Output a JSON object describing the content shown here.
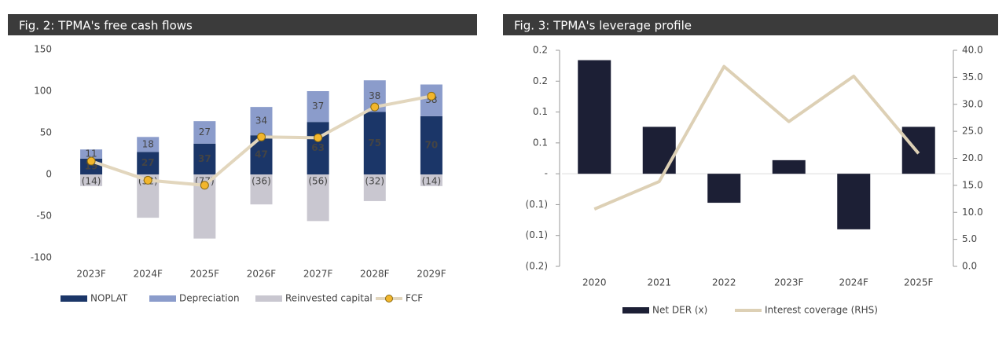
{
  "chart_data": [
    {
      "type": "bar",
      "title": "Fig. 2: TPMA's free cash flows",
      "stacked": true,
      "data_labels": true,
      "categories": [
        "2023F",
        "2024F",
        "2025F",
        "2026F",
        "2027F",
        "2028F",
        "2029F"
      ],
      "series": [
        {
          "name": "NOPLAT",
          "color": "#1b3668",
          "values": [
            19,
            27,
            37,
            47,
            63,
            75,
            70
          ]
        },
        {
          "name": "Depreciation",
          "color": "#8b9ccb",
          "values": [
            11,
            18,
            27,
            34,
            37,
            38,
            38
          ]
        },
        {
          "name": "Reinvested capital",
          "color": "#c9c7d0",
          "values": [
            -14,
            -52,
            -77,
            -36,
            -56,
            -32,
            -14
          ],
          "value_labels": [
            "(14)",
            "(52)",
            "(77)",
            "(36)",
            "(56)",
            "(32)",
            "(14)"
          ]
        },
        {
          "name": "FCF",
          "type": "line",
          "color": "#e2d6bd",
          "marker_color": "#f2b62c",
          "marker": true,
          "values": [
            16,
            -7,
            -13,
            45,
            44,
            81,
            94
          ]
        }
      ],
      "ylim": [
        -100,
        150
      ],
      "yticks": [
        -100,
        -50,
        0,
        50,
        100,
        150
      ]
    },
    {
      "type": "bar",
      "title": "Fig. 3: TPMA's leverage profile",
      "stacked": false,
      "data_labels": false,
      "categories": [
        "2020",
        "2021",
        "2022",
        "2023F",
        "2024F",
        "2025F"
      ],
      "series": [
        {
          "name": "Net DER (x)",
          "color": "#1c1f35",
          "values": [
            0.184,
            0.076,
            -0.047,
            0.022,
            -0.09,
            0.076
          ]
        },
        {
          "name": "Interest coverage (RHS)",
          "type": "line",
          "axis": "y2",
          "color": "#ddd0b5",
          "marker": false,
          "values": [
            10.6,
            15.7,
            37.0,
            26.8,
            35.2,
            20.9
          ]
        }
      ],
      "ylim": [
        -0.15,
        0.2
      ],
      "yticks": [
        {
          "value": -0.15,
          "label": "(0.2)"
        },
        {
          "value": -0.1,
          "label": "(0.1)"
        },
        {
          "value": -0.05,
          "label": "(0.1)"
        },
        {
          "value": 0,
          "label": "-"
        },
        {
          "value": 0.05,
          "label": "0.1"
        },
        0.1,
        {
          "value": 0.15,
          "label": "0.2"
        },
        0.2
      ],
      "y2lim": [
        0,
        40
      ],
      "y2ticks": [
        {
          "value": 0,
          "label": "0.0"
        },
        {
          "value": 5,
          "label": "5.0"
        },
        {
          "value": 10,
          "label": "10.0"
        },
        {
          "value": 15,
          "label": "15.0"
        },
        {
          "value": 20,
          "label": "20.0"
        },
        {
          "value": 25,
          "label": "25.0"
        },
        {
          "value": 30,
          "label": "30.0"
        },
        {
          "value": 35,
          "label": "35.0"
        },
        {
          "value": 40,
          "label": "40.0"
        }
      ]
    }
  ]
}
